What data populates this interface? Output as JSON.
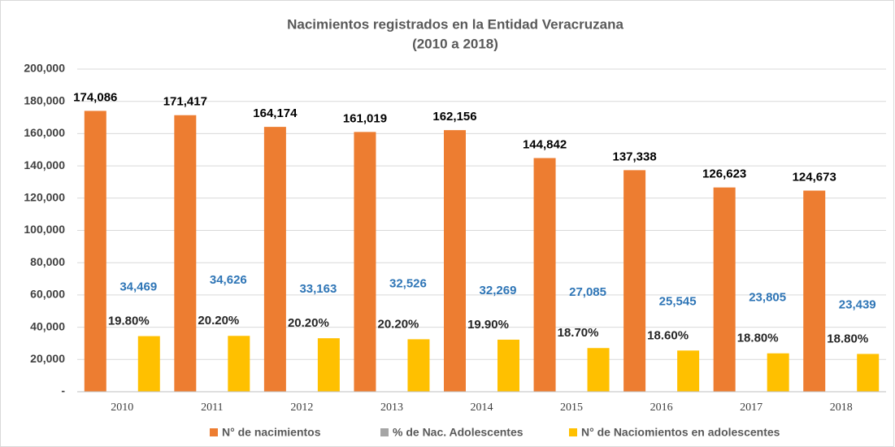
{
  "chart_data": {
    "type": "bar",
    "title": "Nacimientos registrados en la Entidad Veracruzana",
    "subtitle": "(2010 a 2018)",
    "categories": [
      "2010",
      "2011",
      "2012",
      "2013",
      "2014",
      "2015",
      "2016",
      "2017",
      "2018"
    ],
    "series": [
      {
        "name": "N° de nacimientos",
        "color": "#ed7d31",
        "values": [
          174086,
          171417,
          164174,
          161019,
          162156,
          144842,
          137338,
          126623,
          124673
        ],
        "value_labels": [
          "174,086",
          "171,417",
          "164,174",
          "161,019",
          "162,156",
          "144,842",
          "137,338",
          "126,623",
          "124,673"
        ]
      },
      {
        "name": "% de Nac. Adolescentes",
        "color": "#a5a5a5",
        "values": [
          19.8,
          20.2,
          20.2,
          20.2,
          19.9,
          18.7,
          18.6,
          18.8,
          18.8
        ],
        "value_labels": [
          "19.80%",
          "20.20%",
          "20.20%",
          "20.20%",
          "19.90%",
          "18.70%",
          "18.60%",
          "18.80%",
          "18.80%"
        ]
      },
      {
        "name": "N° de Naciomientos en adolescentes",
        "color": "#ffc000",
        "values": [
          34469,
          34626,
          33163,
          32526,
          32269,
          27085,
          25545,
          23805,
          23439
        ],
        "value_labels": [
          "34,469",
          "34,626",
          "33,163",
          "32,526",
          "32,269",
          "27,085",
          "25,545",
          "23,805",
          "23,439"
        ]
      }
    ],
    "ylim": [
      0,
      200000
    ],
    "yticks": [
      {
        "value": 0,
        "label": "-"
      },
      {
        "value": 20000,
        "label": "20,000"
      },
      {
        "value": 40000,
        "label": "40,000"
      },
      {
        "value": 60000,
        "label": "60,000"
      },
      {
        "value": 80000,
        "label": "80,000"
      },
      {
        "value": 100000,
        "label": "100,000"
      },
      {
        "value": 120000,
        "label": "120,000"
      },
      {
        "value": 140000,
        "label": "140,000"
      },
      {
        "value": 160000,
        "label": "160,000"
      },
      {
        "value": 180000,
        "label": "180,000"
      },
      {
        "value": 200000,
        "label": "200,000"
      }
    ],
    "grid": true,
    "legend": "bottom"
  }
}
